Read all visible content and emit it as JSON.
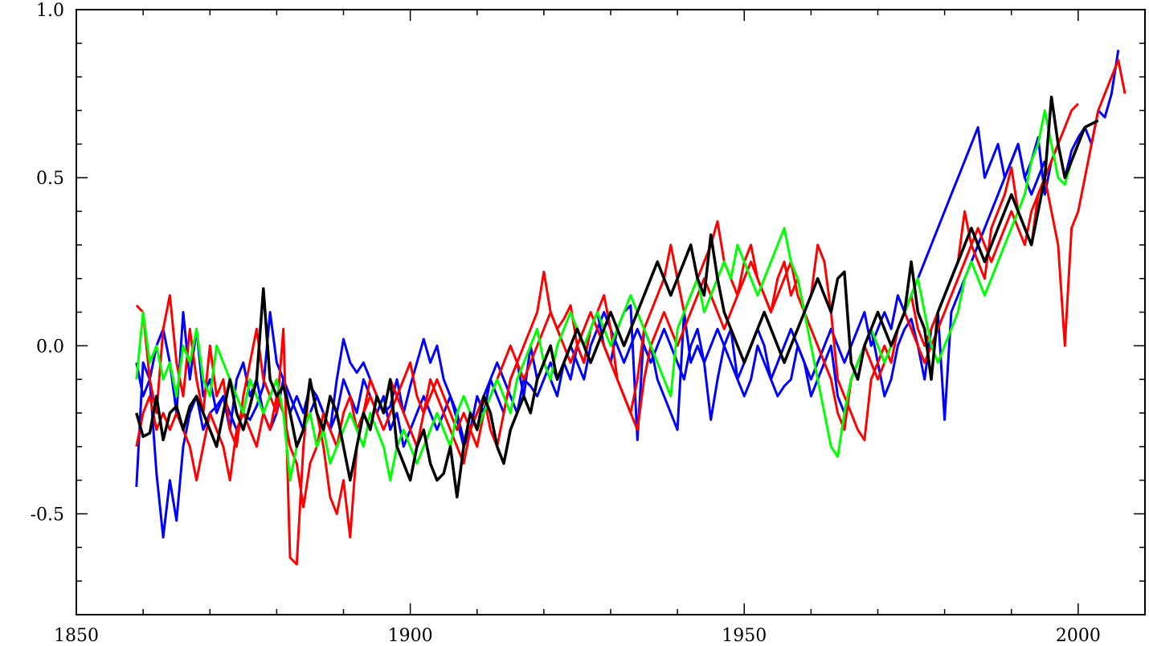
{
  "chart_data": {
    "type": "line",
    "title": "",
    "xlabel": "",
    "ylabel": "",
    "xlim": [
      1850,
      2010
    ],
    "ylim": [
      -0.8,
      1.0
    ],
    "x_ticks": [
      1850,
      1900,
      1950,
      2000
    ],
    "x_tick_labels": [
      "1850",
      "1900",
      "1950",
      "2000"
    ],
    "y_ticks": [
      -0.5,
      0.0,
      0.5,
      1.0
    ],
    "y_tick_labels": [
      "-0.5",
      "0.0",
      "0.5",
      "1.0"
    ],
    "grid": false,
    "legend": "none",
    "x_start": 1859,
    "series": [
      {
        "color": "#0000ff",
        "values": [
          -0.42,
          -0.05,
          -0.1,
          -0.38,
          -0.57,
          -0.4,
          -0.52,
          -0.3,
          -0.2,
          -0.15,
          -0.25,
          -0.2,
          -0.18,
          -0.15,
          -0.2,
          -0.25,
          -0.2,
          -0.22,
          -0.18,
          -0.12,
          0.1,
          -0.05,
          -0.1,
          -0.2,
          -0.15,
          -0.2,
          -0.12,
          -0.15,
          -0.2,
          -0.25,
          -0.1,
          0.02,
          -0.05,
          -0.08,
          -0.05,
          -0.1,
          -0.15,
          -0.2,
          -0.18,
          -0.1,
          -0.2,
          -0.12,
          -0.05,
          0.02,
          -0.05,
          0.0,
          -0.1,
          -0.15,
          -0.2,
          -0.28,
          -0.25,
          -0.15,
          -0.2,
          -0.1,
          -0.15,
          -0.2,
          -0.1,
          -0.05,
          -0.15,
          0.0,
          -0.1,
          -0.05,
          -0.1,
          -0.15,
          -0.05,
          -0.1,
          0.0,
          -0.05,
          0.05,
          0.1,
          0.0,
          -0.05,
          0.05,
          0.1,
          0.12,
          -0.28,
          0.05,
          0.0,
          -0.1,
          -0.15,
          -0.2,
          -0.25,
          0.1,
          -0.05,
          0.0,
          -0.05,
          -0.22,
          -0.1,
          0.0,
          0.05,
          -0.1,
          -0.15,
          -0.1,
          0.0,
          -0.05,
          -0.1,
          -0.15,
          -0.12,
          -0.1,
          0.0,
          -0.05,
          -0.15,
          -0.1,
          -0.05,
          0.0,
          -0.15,
          -0.2,
          -0.1,
          -0.05,
          0.0,
          0.05,
          -0.05,
          -0.15,
          -0.1,
          0.0,
          0.05,
          0.08,
          0.0,
          -0.1,
          0.05,
          0.1,
          -0.22,
          0.1,
          0.15,
          0.2,
          0.25,
          0.3,
          0.35,
          0.4,
          0.45,
          0.5,
          0.55,
          0.6,
          0.5,
          0.55,
          0.62,
          0.45,
          0.55,
          0.6,
          0.5,
          0.58,
          0.62,
          0.65,
          0.6,
          0.7,
          0.68,
          0.75,
          0.88
        ]
      },
      {
        "color": "#0000ff",
        "values": [
          -0.05,
          -0.15,
          -0.1,
          0.0,
          0.05,
          -0.05,
          -0.2,
          0.1,
          -0.1,
          0.05,
          -0.15,
          -0.1,
          -0.2,
          -0.15,
          -0.25,
          -0.1,
          -0.05,
          -0.15,
          -0.1,
          -0.2,
          -0.25,
          -0.2,
          -0.1,
          -0.15,
          -0.2,
          -0.25,
          -0.2,
          -0.15,
          -0.2,
          -0.25,
          -0.2,
          -0.1,
          -0.15,
          -0.2,
          -0.1,
          -0.15,
          -0.2,
          -0.15,
          -0.25,
          -0.2,
          -0.3,
          -0.25,
          -0.2,
          -0.15,
          -0.2,
          -0.25,
          -0.2,
          -0.15,
          -0.22,
          -0.3,
          -0.25,
          -0.2,
          -0.15,
          -0.1,
          -0.05,
          -0.1,
          -0.15,
          -0.2,
          -0.1,
          -0.12,
          -0.15,
          -0.1,
          -0.05,
          -0.1,
          -0.05,
          0.0,
          -0.05,
          -0.1,
          0.0,
          0.05,
          0.1,
          0.05,
          0.0,
          -0.05,
          0.0,
          0.05,
          0.0,
          -0.05,
          0.0,
          0.05,
          0.0,
          -0.05,
          -0.1,
          0.0,
          0.05,
          -0.05,
          0.0,
          0.05,
          0.0,
          -0.05,
          -0.1,
          -0.05,
          0.0,
          0.05,
          0.0,
          -0.1,
          -0.05,
          0.0,
          0.05,
          0.0,
          -0.05,
          -0.1,
          -0.05,
          0.0,
          0.05,
          0.0,
          -0.05,
          0.0,
          0.05,
          0.1,
          0.0,
          0.05,
          0.1,
          0.05,
          0.15,
          0.1,
          0.15,
          0.2,
          0.25,
          0.3,
          0.35,
          0.4,
          0.45,
          0.5,
          0.55,
          0.6,
          0.65,
          0.5,
          0.55,
          0.6,
          0.5,
          0.55,
          0.6,
          0.5,
          0.45,
          0.5,
          0.55
        ]
      },
      {
        "color": "#ff0000",
        "values": [
          0.12,
          0.1,
          -0.1,
          -0.2,
          0.05,
          0.15,
          -0.05,
          -0.15,
          0.05,
          -0.1,
          -0.2,
          0.0,
          -0.15,
          -0.1,
          -0.25,
          -0.3,
          -0.15,
          -0.05,
          0.05,
          -0.1,
          -0.15,
          -0.2,
          0.05,
          -0.63,
          -0.65,
          -0.3,
          -0.1,
          -0.2,
          -0.3,
          -0.45,
          -0.5,
          -0.4,
          -0.57,
          -0.3,
          -0.2,
          -0.1,
          -0.15,
          -0.2,
          -0.1,
          -0.15,
          -0.2,
          -0.25,
          -0.3,
          -0.2,
          -0.1,
          -0.15,
          -0.2,
          -0.25,
          -0.3,
          -0.35,
          -0.25,
          -0.2,
          -0.15,
          -0.25,
          -0.3,
          -0.2,
          -0.1,
          -0.05,
          0.0,
          0.05,
          0.1,
          0.22,
          0.1,
          0.05,
          0.08,
          0.12,
          0.0,
          -0.05,
          0.05,
          0.1,
          0.15,
          0.05,
          -0.1,
          -0.15,
          -0.2,
          -0.1,
          0.05,
          0.1,
          0.15,
          0.2,
          0.3,
          0.2,
          0.1,
          0.15,
          0.2,
          0.25,
          0.3,
          0.37,
          0.25,
          0.2,
          0.15,
          0.25,
          0.3,
          0.2,
          0.15,
          0.1,
          0.2,
          0.25,
          0.15,
          0.2,
          0.1,
          0.15,
          0.3,
          0.25,
          0.1,
          -0.1,
          -0.15,
          -0.2,
          -0.25,
          -0.28,
          -0.1,
          -0.05,
          0.0,
          -0.05,
          0.05,
          0.1,
          0.15,
          0.05,
          0.0,
          0.05,
          0.1,
          0.15,
          0.2,
          0.25,
          0.4,
          0.3,
          0.25,
          0.2,
          0.35,
          0.4,
          0.45,
          0.53,
          0.4,
          0.35,
          0.3,
          0.45,
          0.5,
          0.4,
          0.3,
          0.0,
          0.35,
          0.4,
          0.5,
          0.6,
          0.7,
          0.75,
          0.8,
          0.85,
          0.75
        ]
      },
      {
        "color": "#ff0000",
        "values": [
          -0.3,
          -0.2,
          -0.15,
          -0.25,
          -0.2,
          -0.25,
          -0.2,
          -0.25,
          -0.3,
          -0.4,
          -0.3,
          -0.2,
          -0.25,
          -0.3,
          -0.4,
          -0.25,
          -0.2,
          -0.25,
          -0.3,
          -0.2,
          -0.25,
          -0.15,
          -0.2,
          -0.3,
          -0.35,
          -0.48,
          -0.35,
          -0.3,
          -0.2,
          -0.25,
          -0.3,
          -0.2,
          -0.15,
          -0.25,
          -0.2,
          -0.15,
          -0.2,
          -0.25,
          -0.2,
          -0.15,
          -0.1,
          -0.05,
          -0.15,
          -0.2,
          -0.15,
          -0.1,
          -0.15,
          -0.2,
          -0.25,
          -0.2,
          -0.25,
          -0.3,
          -0.2,
          -0.15,
          -0.1,
          -0.05,
          0.0,
          -0.05,
          -0.1,
          -0.05,
          0.0,
          0.05,
          0.1,
          0.05,
          0.0,
          -0.05,
          0.0,
          0.05,
          0.1,
          0.05,
          0.0,
          -0.05,
          -0.1,
          -0.15,
          -0.2,
          -0.25,
          -0.1,
          0.0,
          0.05,
          0.1,
          0.05,
          0.0,
          0.05,
          0.1,
          0.15,
          0.2,
          0.15,
          0.1,
          0.05,
          0.1,
          0.15,
          0.2,
          0.25,
          0.2,
          0.15,
          0.1,
          0.15,
          0.2,
          0.25,
          0.15,
          0.1,
          0.05,
          0.0,
          -0.05,
          -0.1,
          -0.2,
          -0.25,
          -0.1,
          -0.05,
          0.0,
          -0.05,
          -0.1,
          -0.05,
          0.0,
          0.05,
          0.1,
          0.05,
          0.0,
          -0.05,
          0.0,
          0.05,
          0.1,
          0.15,
          0.2,
          0.25,
          0.3,
          0.35,
          0.3,
          0.25,
          0.3,
          0.35,
          0.4,
          0.35,
          0.3,
          0.4,
          0.45,
          0.5,
          0.55,
          0.6,
          0.65,
          0.7,
          0.72
        ]
      },
      {
        "color": "#00ff00",
        "values": [
          -0.1,
          0.1,
          -0.05,
          0.0,
          -0.1,
          -0.05,
          -0.15,
          0.0,
          -0.05,
          0.05,
          -0.1,
          -0.15,
          0.0,
          -0.05,
          -0.1,
          -0.15,
          -0.2,
          -0.1,
          -0.15,
          -0.2,
          -0.15,
          -0.1,
          -0.2,
          -0.4,
          -0.3,
          -0.25,
          -0.2,
          -0.3,
          -0.25,
          -0.35,
          -0.3,
          -0.25,
          -0.2,
          -0.25,
          -0.3,
          -0.2,
          -0.25,
          -0.3,
          -0.4,
          -0.3,
          -0.25,
          -0.3,
          -0.35,
          -0.3,
          -0.25,
          -0.2,
          -0.25,
          -0.3,
          -0.2,
          -0.15,
          -0.2,
          -0.25,
          -0.2,
          -0.15,
          -0.1,
          -0.15,
          -0.2,
          -0.1,
          -0.05,
          0.0,
          0.05,
          -0.05,
          -0.1,
          0.0,
          0.05,
          0.1,
          0.05,
          0.0,
          0.05,
          0.1,
          0.05,
          0.0,
          0.05,
          0.1,
          0.15,
          0.1,
          0.05,
          0.0,
          -0.05,
          -0.1,
          -0.15,
          0.05,
          0.1,
          0.15,
          0.2,
          0.1,
          0.15,
          0.2,
          0.25,
          0.2,
          0.3,
          0.25,
          0.2,
          0.15,
          0.2,
          0.25,
          0.3,
          0.35,
          0.25,
          0.2,
          0.1,
          0.0,
          -0.1,
          -0.2,
          -0.3,
          -0.33,
          -0.2,
          -0.1,
          -0.05,
          0.0,
          0.05,
          0.0,
          -0.05,
          0.0,
          0.05,
          0.1,
          0.15,
          0.2,
          0.1,
          0.0,
          -0.05,
          0.0,
          0.05,
          0.1,
          0.2,
          0.25,
          0.2,
          0.15,
          0.2,
          0.25,
          0.3,
          0.35,
          0.4,
          0.45,
          0.55,
          0.6,
          0.7,
          0.6,
          0.5,
          0.48,
          0.55,
          0.6
        ]
      },
      {
        "color": "#000000",
        "values": [
          -0.2,
          -0.27,
          -0.26,
          -0.15,
          -0.28,
          -0.2,
          -0.18,
          -0.25,
          -0.18,
          -0.15,
          -0.2,
          -0.25,
          -0.3,
          -0.2,
          -0.1,
          -0.2,
          -0.25,
          -0.18,
          -0.1,
          0.17,
          -0.1,
          -0.15,
          -0.12,
          -0.2,
          -0.3,
          -0.25,
          -0.1,
          -0.2,
          -0.25,
          -0.15,
          -0.2,
          -0.3,
          -0.4,
          -0.3,
          -0.2,
          -0.25,
          -0.15,
          -0.2,
          -0.1,
          -0.3,
          -0.35,
          -0.4,
          -0.3,
          -0.25,
          -0.35,
          -0.4,
          -0.38,
          -0.3,
          -0.45,
          -0.3,
          -0.2,
          -0.25,
          -0.15,
          -0.2,
          -0.3,
          -0.35,
          -0.25,
          -0.2,
          -0.15,
          -0.2,
          -0.1,
          -0.05,
          0.0,
          -0.1,
          -0.05,
          0.0,
          0.05,
          0.0,
          -0.05,
          0.0,
          0.05,
          0.1,
          0.05,
          0.0,
          0.05,
          0.1,
          0.15,
          0.2,
          0.25,
          0.2,
          0.15,
          0.2,
          0.25,
          0.3,
          0.2,
          0.15,
          0.33,
          0.2,
          0.1,
          0.05,
          0.0,
          -0.05,
          0.0,
          0.05,
          0.1,
          0.05,
          0.0,
          -0.05,
          0.0,
          0.05,
          0.1,
          0.15,
          0.2,
          0.15,
          0.1,
          0.2,
          0.22,
          -0.05,
          -0.1,
          0.0,
          0.05,
          0.1,
          0.05,
          0.0,
          0.05,
          0.1,
          0.25,
          0.1,
          0.05,
          -0.1,
          0.1,
          0.15,
          0.2,
          0.25,
          0.3,
          0.35,
          0.3,
          0.25,
          0.3,
          0.35,
          0.4,
          0.45,
          0.4,
          0.35,
          0.3,
          0.4,
          0.5,
          0.74,
          0.6,
          0.5,
          0.55,
          0.6,
          0.65,
          0.66,
          0.67
        ]
      }
    ]
  }
}
